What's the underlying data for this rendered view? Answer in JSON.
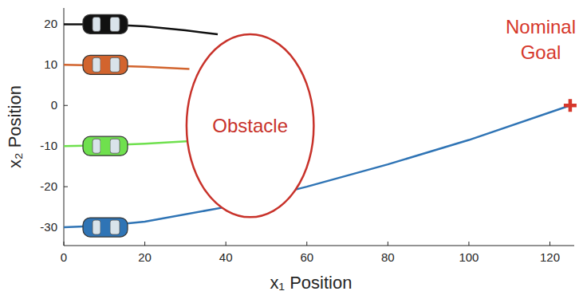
{
  "chart_data": {
    "type": "line",
    "x_label": "x₁ Position",
    "y_label": "x₂ Position",
    "xlim": [
      0,
      126
    ],
    "ylim": [
      -34.5,
      24
    ],
    "xticks": [
      0,
      20,
      40,
      60,
      80,
      100,
      120
    ],
    "yticks": [
      -30,
      -20,
      -10,
      0,
      10,
      20
    ],
    "grid": false,
    "series": [
      {
        "color": "#111111",
        "x": [
          0,
          10,
          20,
          30,
          38
        ],
        "values": [
          20,
          20,
          19.5,
          18.5,
          17.5
        ]
      },
      {
        "color": "#d2642e",
        "x": [
          0,
          10,
          20,
          31
        ],
        "values": [
          10,
          9.8,
          9.5,
          9
        ]
      },
      {
        "color": "#6fe04e",
        "x": [
          0,
          10,
          20,
          31
        ],
        "values": [
          -10,
          -9.8,
          -9.4,
          -8.8
        ]
      },
      {
        "color": "#2f74b5",
        "x": [
          0,
          10,
          20,
          40,
          60,
          80,
          100,
          125
        ],
        "values": [
          -30,
          -29.6,
          -28.6,
          -25,
          -20,
          -14.5,
          -8.5,
          0
        ]
      }
    ],
    "obstacle": {
      "x": 46,
      "y": -5,
      "rx": 15.7,
      "ry": 22.5,
      "color": "#c8322a",
      "label": "Obstacle"
    },
    "goal": {
      "x": 125,
      "y": 0,
      "color": "#d6372b",
      "marker": "plus",
      "label": "Nominal Goal"
    }
  }
}
